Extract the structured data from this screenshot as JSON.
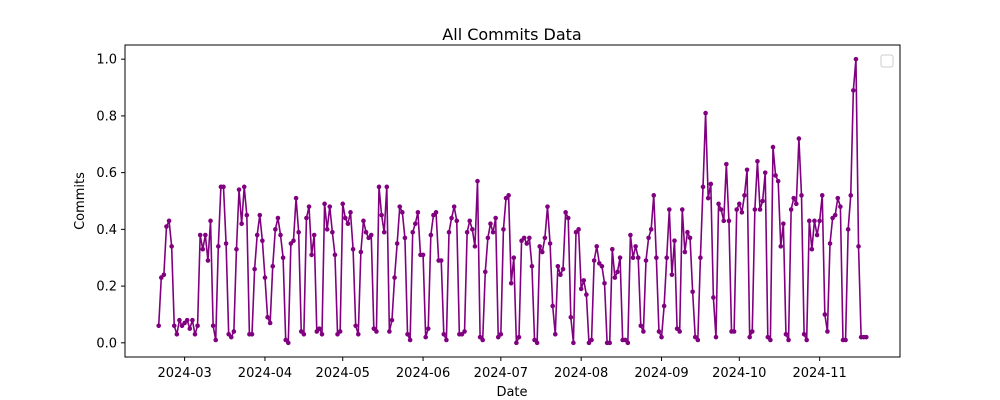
{
  "chart_data": {
    "type": "line",
    "title": "All Commits Data",
    "xlabel": "Date",
    "ylabel": "Commits",
    "color": "#800080",
    "x_start": "2024-02-20",
    "x_end": "2024-11-19",
    "xlim": [
      "2024-02-07",
      "2024-12-02"
    ],
    "ylim": [
      -0.05,
      1.05
    ],
    "x_ticks": [
      "2024-03-01",
      "2024-04-01",
      "2024-05-01",
      "2024-06-01",
      "2024-07-01",
      "2024-08-01",
      "2024-09-01",
      "2024-10-01",
      "2024-11-01"
    ],
    "x_tick_labels": [
      "2024-03",
      "2024-04",
      "2024-05",
      "2024-06",
      "2024-07",
      "2024-08",
      "2024-09",
      "2024-10",
      "2024-11"
    ],
    "y_ticks": [
      0.0,
      0.2,
      0.4,
      0.6,
      0.8,
      1.0
    ],
    "y_tick_labels": [
      "0.0",
      "0.2",
      "0.4",
      "0.6",
      "0.8",
      "1.0"
    ],
    "grid": false,
    "legend": "top-right (empty)",
    "values": [
      0.06,
      0.23,
      0.24,
      0.41,
      0.43,
      0.34,
      0.06,
      0.03,
      0.08,
      0.06,
      0.07,
      0.08,
      0.05,
      0.08,
      0.03,
      0.06,
      0.38,
      0.33,
      0.38,
      0.29,
      0.43,
      0.06,
      0.01,
      0.34,
      0.55,
      0.55,
      0.35,
      0.03,
      0.02,
      0.04,
      0.33,
      0.54,
      0.42,
      0.55,
      0.45,
      0.03,
      0.03,
      0.26,
      0.38,
      0.45,
      0.36,
      0.23,
      0.09,
      0.07,
      0.27,
      0.4,
      0.44,
      0.38,
      0.3,
      0.01,
      0.0,
      0.35,
      0.36,
      0.51,
      0.39,
      0.04,
      0.03,
      0.44,
      0.48,
      0.31,
      0.38,
      0.04,
      0.05,
      0.03,
      0.49,
      0.4,
      0.48,
      0.39,
      0.31,
      0.03,
      0.04,
      0.49,
      0.44,
      0.42,
      0.46,
      0.33,
      0.06,
      0.03,
      0.32,
      0.43,
      0.39,
      0.37,
      0.38,
      0.05,
      0.04,
      0.55,
      0.45,
      0.39,
      0.55,
      0.04,
      0.08,
      0.23,
      0.35,
      0.48,
      0.46,
      0.37,
      0.03,
      0.01,
      0.39,
      0.42,
      0.46,
      0.31,
      0.31,
      0.02,
      0.05,
      0.38,
      0.45,
      0.46,
      0.29,
      0.29,
      0.03,
      0.01,
      0.39,
      0.44,
      0.48,
      0.43,
      0.03,
      0.03,
      0.04,
      0.39,
      0.43,
      0.4,
      0.34,
      0.57,
      0.02,
      0.01,
      0.25,
      0.37,
      0.42,
      0.39,
      0.44,
      0.02,
      0.03,
      0.4,
      0.51,
      0.52,
      0.21,
      0.3,
      0.0,
      0.02,
      0.36,
      0.37,
      0.35,
      0.37,
      0.27,
      0.01,
      0.0,
      0.34,
      0.32,
      0.37,
      0.48,
      0.35,
      0.13,
      0.03,
      0.27,
      0.24,
      0.26,
      0.46,
      0.44,
      0.09,
      0.0,
      0.39,
      0.4,
      0.19,
      0.22,
      0.17,
      0.0,
      0.01,
      0.29,
      0.34,
      0.28,
      0.27,
      0.21,
      0.0,
      0.0,
      0.33,
      0.23,
      0.25,
      0.3,
      0.01,
      0.01,
      0.0,
      0.38,
      0.3,
      0.34,
      0.3,
      0.06,
      0.04,
      0.29,
      0.37,
      0.4,
      0.52,
      0.3,
      0.04,
      0.02,
      0.13,
      0.3,
      0.47,
      0.24,
      0.36,
      0.05,
      0.04,
      0.47,
      0.32,
      0.39,
      0.37,
      0.18,
      0.02,
      0.01,
      0.3,
      0.55,
      0.81,
      0.51,
      0.56,
      0.16,
      0.02,
      0.49,
      0.47,
      0.43,
      0.63,
      0.43,
      0.04,
      0.04,
      0.47,
      0.49,
      0.46,
      0.52,
      0.61,
      0.02,
      0.04,
      0.47,
      0.64,
      0.47,
      0.5,
      0.6,
      0.02,
      0.01,
      0.69,
      0.59,
      0.57,
      0.34,
      0.42,
      0.03,
      0.01,
      0.47,
      0.51,
      0.49,
      0.72,
      0.52,
      0.03,
      0.01,
      0.43,
      0.33,
      0.43,
      0.38,
      0.43,
      0.52,
      0.1,
      0.04,
      0.35,
      0.44,
      0.45,
      0.51,
      0.48,
      0.01,
      0.01,
      0.4,
      0.52,
      0.89,
      1.0,
      0.34,
      0.02,
      0.02,
      0.02
    ]
  }
}
